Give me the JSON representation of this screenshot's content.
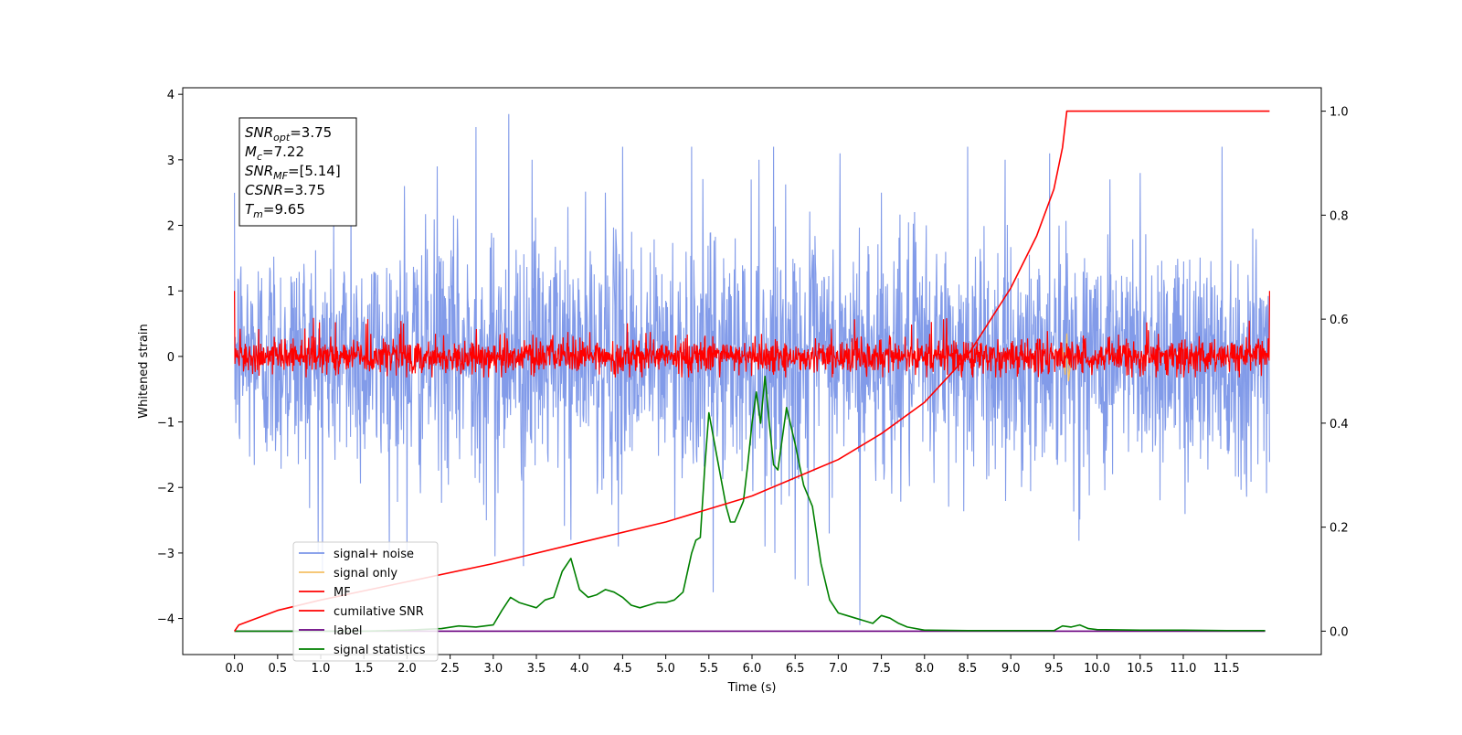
{
  "chart_data": {
    "type": "line",
    "xlabel": "Time (s)",
    "ylabel": "Whitened strain",
    "xlim": [
      -0.6,
      12.6
    ],
    "ylim": [
      -4.55,
      4.1
    ],
    "y2lim": [
      -0.045,
      1.045
    ],
    "x_ticks": [
      0.0,
      0.5,
      1.0,
      1.5,
      2.0,
      2.5,
      3.0,
      3.5,
      4.0,
      4.5,
      5.0,
      5.5,
      6.0,
      6.5,
      7.0,
      7.5,
      8.0,
      8.5,
      9.0,
      9.5,
      10.0,
      10.5,
      11.0,
      11.5
    ],
    "x_tick_labels": [
      "0.0",
      "0.5",
      "1.0",
      "1.5",
      "2.0",
      "2.5",
      "3.0",
      "3.5",
      "4.0",
      "4.5",
      "5.0",
      "5.5",
      "6.0",
      "6.5",
      "7.0",
      "7.5",
      "8.0",
      "8.5",
      "9.0",
      "9.5",
      "10.0",
      "10.5",
      "11.0",
      "11.5"
    ],
    "y_ticks": [
      4,
      3,
      2,
      1,
      0,
      -1,
      -2,
      -3,
      -4
    ],
    "y_tick_labels": [
      "4",
      "3",
      "2",
      "1",
      "0",
      "−1",
      "−2",
      "−3",
      "−4"
    ],
    "y2_ticks": [
      1.0,
      0.8,
      0.6,
      0.4,
      0.2,
      0.0
    ],
    "y2_tick_labels": [
      "1.0",
      "0.8",
      "0.6",
      "0.4",
      "0.2",
      "0.0"
    ],
    "legend_placement": "lower-left",
    "grid": false,
    "series": [
      {
        "name": "signal+ noise",
        "color": "#7b96e8",
        "axis": "left",
        "note": "broadband noise, std ~0.9, t 0–12",
        "spikes": [
          [
            1.02,
            -3.3
          ],
          [
            1.35,
            2.4
          ],
          [
            1.97,
            2.6
          ],
          [
            2.0,
            -3.1
          ],
          [
            2.35,
            2.9
          ],
          [
            2.8,
            3.5
          ],
          [
            2.92,
            -2.5
          ],
          [
            3.02,
            -3.05
          ],
          [
            3.18,
            3.7
          ],
          [
            3.35,
            -3.2
          ],
          [
            3.45,
            3.0
          ],
          [
            3.9,
            -2.8
          ],
          [
            4.3,
            2.5
          ],
          [
            4.45,
            -2.9
          ],
          [
            4.5,
            3.2
          ],
          [
            5.3,
            3.2
          ],
          [
            5.55,
            -3.6
          ],
          [
            6.08,
            3.0
          ],
          [
            6.15,
            -2.9
          ],
          [
            6.25,
            3.2
          ],
          [
            6.5,
            -3.4
          ],
          [
            6.65,
            -3.5
          ],
          [
            7.02,
            3.1
          ],
          [
            7.25,
            -4.1
          ],
          [
            7.5,
            2.5
          ],
          [
            8.5,
            3.2
          ],
          [
            9.45,
            3.1
          ],
          [
            10.15,
            2.7
          ],
          [
            10.5,
            -3.4
          ],
          [
            10.5,
            2.8
          ],
          [
            11.45,
            3.2
          ]
        ]
      },
      {
        "name": "signal only",
        "color": "#f4c064",
        "axis": "left",
        "x": [
          9.55,
          9.6,
          9.63,
          9.65,
          9.67,
          9.7
        ],
        "y": [
          0.0,
          0.12,
          -0.28,
          0.35,
          -0.38,
          0.0
        ]
      },
      {
        "name": "MF",
        "color": "#ff0000",
        "axis": "left",
        "note": "matched filter output, std ~0.13, t 0–12",
        "edges": [
          [
            0.0,
            1.0
          ],
          [
            12.0,
            1.0
          ]
        ]
      },
      {
        "name": "cumilative SNR",
        "color": "#ff0000",
        "axis": "right",
        "x": [
          0.0,
          0.05,
          0.5,
          1.0,
          2.0,
          3.0,
          4.0,
          5.0,
          6.0,
          7.0,
          7.5,
          8.0,
          8.5,
          9.0,
          9.3,
          9.5,
          9.6,
          9.65,
          12.0
        ],
        "y": [
          0.0,
          0.012,
          0.04,
          0.06,
          0.095,
          0.13,
          0.17,
          0.21,
          0.26,
          0.33,
          0.38,
          0.44,
          0.53,
          0.66,
          0.76,
          0.85,
          0.93,
          1.0,
          1.0
        ]
      },
      {
        "name": "label",
        "color": "#6a0080",
        "axis": "right",
        "x": [
          0.0,
          11.95
        ],
        "y": [
          0.0,
          0.0
        ]
      },
      {
        "name": "signal statistics",
        "color": "#008000",
        "axis": "right",
        "x": [
          0.0,
          0.5,
          1.0,
          1.5,
          2.0,
          2.4,
          2.6,
          2.8,
          3.0,
          3.1,
          3.2,
          3.3,
          3.4,
          3.5,
          3.6,
          3.7,
          3.8,
          3.9,
          4.0,
          4.1,
          4.2,
          4.3,
          4.4,
          4.5,
          4.6,
          4.7,
          4.8,
          4.9,
          5.0,
          5.1,
          5.2,
          5.3,
          5.35,
          5.4,
          5.45,
          5.5,
          5.6,
          5.7,
          5.75,
          5.8,
          5.9,
          5.95,
          6.0,
          6.05,
          6.1,
          6.15,
          6.2,
          6.25,
          6.3,
          6.4,
          6.5,
          6.6,
          6.7,
          6.8,
          6.9,
          7.0,
          7.1,
          7.2,
          7.3,
          7.4,
          7.5,
          7.6,
          7.7,
          7.8,
          8.0,
          8.5,
          9.0,
          9.5,
          9.6,
          9.7,
          9.8,
          9.9,
          10.0,
          10.5,
          11.0,
          11.5,
          11.95
        ],
        "y": [
          0.0,
          0.0,
          0.0,
          0.0,
          0.002,
          0.005,
          0.01,
          0.008,
          0.012,
          0.04,
          0.065,
          0.055,
          0.05,
          0.045,
          0.06,
          0.065,
          0.115,
          0.14,
          0.08,
          0.065,
          0.07,
          0.08,
          0.075,
          0.065,
          0.05,
          0.045,
          0.05,
          0.055,
          0.055,
          0.06,
          0.075,
          0.15,
          0.175,
          0.18,
          0.31,
          0.42,
          0.33,
          0.24,
          0.21,
          0.21,
          0.25,
          0.32,
          0.4,
          0.46,
          0.4,
          0.49,
          0.4,
          0.32,
          0.31,
          0.43,
          0.36,
          0.28,
          0.24,
          0.13,
          0.06,
          0.035,
          0.03,
          0.025,
          0.02,
          0.015,
          0.03,
          0.025,
          0.015,
          0.008,
          0.002,
          0.001,
          0.001,
          0.001,
          0.01,
          0.008,
          0.012,
          0.005,
          0.003,
          0.002,
          0.002,
          0.001,
          0.001
        ]
      }
    ]
  },
  "annotation": {
    "lines": [
      {
        "base": "SNR",
        "sub": "opt",
        "value": "=3.75"
      },
      {
        "base": "M",
        "sub": "c",
        "value": "=7.22"
      },
      {
        "base": "SNR",
        "sub": "MF",
        "value": "=[5.14]"
      },
      {
        "base": "CSNR",
        "sub": "",
        "value": "=3.75"
      },
      {
        "base": "T",
        "sub": "m",
        "value": "=9.65"
      }
    ]
  }
}
